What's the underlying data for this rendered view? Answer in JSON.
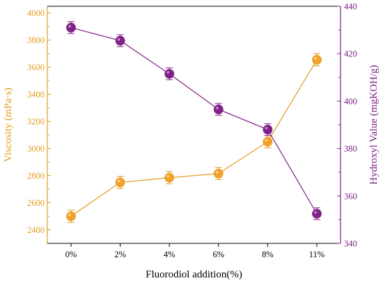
{
  "chart_data": {
    "type": "line",
    "title": "",
    "xlabel": "Fluorodiol addition(%)",
    "ylabel_left": "Viscosity (mPa·s)",
    "ylabel_right": "Hydroxyl Value (mgKOH/g)",
    "categories": [
      "0%",
      "2%",
      "4%",
      "6%",
      "8%",
      "11%"
    ],
    "y_left": {
      "lim": [
        2300,
        4050
      ],
      "ticks": [
        2400,
        2600,
        2800,
        3000,
        3200,
        3400,
        3600,
        3800,
        4000
      ],
      "color": "#E39B1E"
    },
    "y_right": {
      "lim": [
        340,
        440
      ],
      "ticks": [
        340,
        360,
        380,
        400,
        420,
        440
      ],
      "color": "#7F1F86"
    },
    "series": [
      {
        "axis": "left",
        "color": "#E39B1E",
        "marker_fill": "#F2A229",
        "values": [
          2500,
          2750,
          2785,
          2815,
          3050,
          3655
        ],
        "errors": [
          45,
          45,
          45,
          45,
          45,
          45
        ]
      },
      {
        "axis": "right",
        "color": "#7F1F86",
        "marker_fill": "#80208A",
        "values": [
          431,
          425.5,
          411.5,
          396.5,
          388,
          352.5
        ],
        "errors": [
          2.5,
          2.5,
          2.5,
          2.5,
          2.5,
          2.5
        ]
      }
    ],
    "grid": false,
    "legend": "none"
  }
}
